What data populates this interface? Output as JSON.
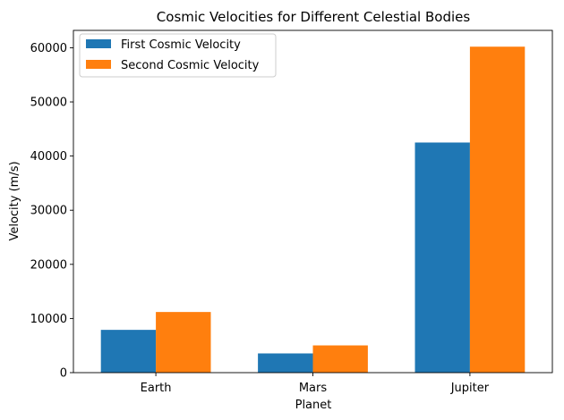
{
  "chart_data": {
    "type": "bar",
    "title": "Cosmic Velocities for Different Celestial Bodies",
    "xlabel": "Planet",
    "ylabel": "Velocity (m/s)",
    "categories": [
      "Earth",
      "Mars",
      "Jupiter"
    ],
    "series": [
      {
        "name": "First Cosmic Velocity",
        "color": "#1f77b4",
        "values": [
          7900,
          3550,
          42500
        ]
      },
      {
        "name": "Second Cosmic Velocity",
        "color": "#ff7f0e",
        "values": [
          11200,
          5030,
          60200
        ]
      }
    ],
    "yticks": [
      0,
      10000,
      20000,
      30000,
      40000,
      50000,
      60000
    ],
    "ylim": [
      0,
      63210
    ],
    "grid": false,
    "legend_position": "top-left"
  }
}
